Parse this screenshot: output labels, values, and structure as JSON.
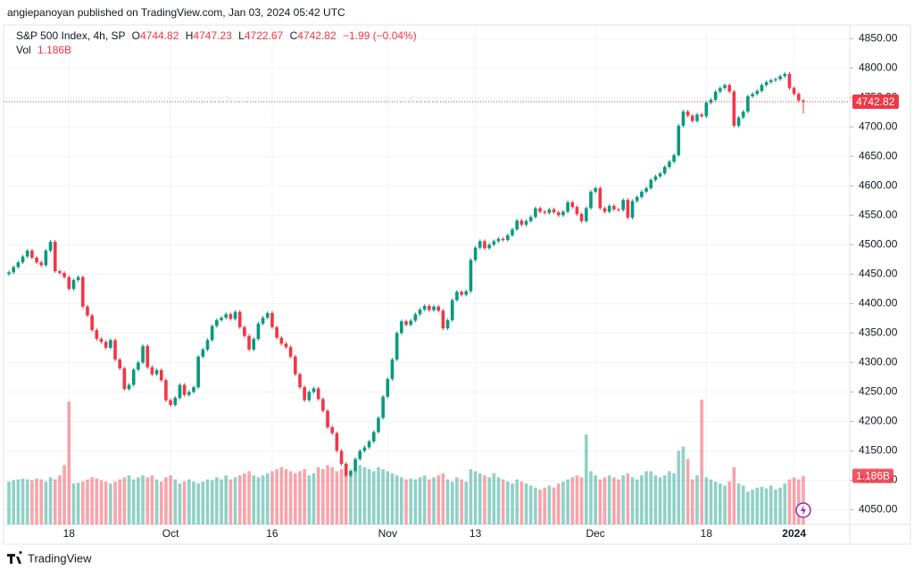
{
  "chart_data": {
    "type": "candlestick",
    "publisher": "angiepanoyan published on TradingView.com, Jan 03, 2024 05:42 UTC",
    "brand": "TradingView",
    "title": "S&P 500 Index, 4h, SP",
    "ohlc_letters": [
      "O",
      "H",
      "L",
      "C"
    ],
    "change": "−1.99 (−0.04%)",
    "up_color": "#089981",
    "down_color": "#f23645",
    "grid": true,
    "ylim": [
      4025,
      4870
    ],
    "yticks": [
      {
        "value": 4050,
        "label": "4050.00"
      },
      {
        "value": 4100,
        "label": "4100.00"
      },
      {
        "value": 4150,
        "label": "4150.00"
      },
      {
        "value": 4200,
        "label": "4200.00"
      },
      {
        "value": 4250,
        "label": "4250.00"
      },
      {
        "value": 4300,
        "label": "4300.00"
      },
      {
        "value": 4350,
        "label": "4350.00"
      },
      {
        "value": 4400,
        "label": "4400.00"
      },
      {
        "value": 4450,
        "label": "4450.00"
      },
      {
        "value": 4500,
        "label": "4500.00"
      },
      {
        "value": 4550,
        "label": "4550.00"
      },
      {
        "value": 4600,
        "label": "4600.00"
      },
      {
        "value": 4650,
        "label": "4650.00"
      },
      {
        "value": 4700,
        "label": "4700.00"
      },
      {
        "value": 4750,
        "label": "4750.00"
      },
      {
        "value": 4800,
        "label": "4800.00"
      },
      {
        "value": 4850,
        "label": "4850.00"
      }
    ],
    "categories": [
      null,
      null,
      null,
      null,
      null,
      null,
      null,
      null,
      null,
      null,
      null,
      null,
      null,
      "18",
      null,
      null,
      null,
      null,
      null,
      null,
      null,
      null,
      null,
      null,
      null,
      null,
      null,
      null,
      null,
      null,
      null,
      null,
      null,
      null,
      null,
      "Oct",
      null,
      null,
      null,
      null,
      null,
      null,
      null,
      null,
      null,
      null,
      null,
      null,
      null,
      null,
      null,
      null,
      null,
      null,
      null,
      null,
      null,
      "16",
      null,
      null,
      null,
      null,
      null,
      null,
      null,
      null,
      null,
      null,
      null,
      null,
      null,
      null,
      null,
      null,
      null,
      null,
      null,
      null,
      null,
      null,
      null,
      null,
      "Nov",
      null,
      null,
      null,
      null,
      null,
      null,
      null,
      null,
      null,
      null,
      null,
      null,
      null,
      null,
      null,
      null,
      null,
      null,
      "13",
      null,
      null,
      null,
      null,
      null,
      null,
      null,
      null,
      null,
      null,
      null,
      null,
      null,
      null,
      null,
      null,
      null,
      null,
      null,
      null,
      null,
      null,
      null,
      null,
      null,
      "Dec",
      null,
      null,
      null,
      null,
      null,
      null,
      null,
      null,
      null,
      null,
      null,
      null,
      null,
      null,
      null,
      null,
      null,
      null,
      null,
      null,
      null,
      null,
      null,
      "18",
      null,
      null,
      null,
      null,
      null,
      null,
      null,
      null,
      null,
      null,
      null,
      null,
      null,
      null,
      null,
      null,
      null,
      null,
      "2024",
      null,
      null
    ],
    "open": [
      4450,
      4453,
      4462,
      4470,
      4480,
      4490,
      4478,
      4470,
      4465,
      4490,
      4505,
      4455,
      4452,
      4445,
      4425,
      4440,
      4445,
      4395,
      4380,
      4355,
      4340,
      4335,
      4325,
      4338,
      4305,
      4290,
      4255,
      4262,
      4288,
      4300,
      4328,
      4292,
      4280,
      4287,
      4270,
      4236,
      4228,
      4240,
      4262,
      4245,
      4250,
      4258,
      4310,
      4322,
      4338,
      4362,
      4372,
      4376,
      4382,
      4374,
      4386,
      4360,
      4345,
      4322,
      4340,
      4366,
      4376,
      4384,
      4360,
      4342,
      4332,
      4326,
      4310,
      4280,
      4258,
      4236,
      4250,
      4256,
      4238,
      4218,
      4190,
      4180,
      4150,
      4128,
      4108,
      4116,
      4136,
      4150,
      4156,
      4166,
      4182,
      4206,
      4242,
      4272,
      4305,
      4350,
      4370,
      4364,
      4371,
      4382,
      4390,
      4396,
      4389,
      4395,
      4388,
      4358,
      4372,
      4406,
      4420,
      4415,
      4421,
      4474,
      4495,
      4506,
      4494,
      4500,
      4506,
      4510,
      4508,
      4516,
      4526,
      4541,
      4534,
      4540,
      4547,
      4562,
      4556,
      4554,
      4560,
      4555,
      4550,
      4556,
      4572,
      4564,
      4552,
      4540,
      4562,
      4590,
      4596,
      4562,
      4556,
      4566,
      4560,
      4559,
      4576,
      4546,
      4574,
      4581,
      4590,
      4596,
      4610,
      4616,
      4621,
      4632,
      4641,
      4652,
      4702,
      4726,
      4719,
      4710,
      4721,
      4718,
      4741,
      4746,
      4760,
      4766,
      4771,
      4760,
      4702,
      4716,
      4726,
      4752,
      4756,
      4761,
      4771,
      4776,
      4779,
      4781,
      4786,
      4790,
      4766,
      4756,
      4744.82
    ],
    "high": [
      4456,
      4465,
      4473,
      4483,
      4493,
      4493,
      4481,
      4473,
      4493,
      4508,
      4508,
      4458,
      4455,
      4448,
      4443,
      4448,
      4448,
      4398,
      4383,
      4358,
      4343,
      4338,
      4341,
      4341,
      4308,
      4293,
      4265,
      4291,
      4303,
      4331,
      4331,
      4295,
      4290,
      4290,
      4273,
      4239,
      4243,
      4265,
      4265,
      4253,
      4261,
      4313,
      4325,
      4341,
      4365,
      4375,
      4379,
      4385,
      4385,
      4389,
      4389,
      4363,
      4348,
      4343,
      4369,
      4379,
      4387,
      4387,
      4363,
      4345,
      4335,
      4329,
      4313,
      4283,
      4261,
      4253,
      4259,
      4259,
      4241,
      4221,
      4193,
      4183,
      4153,
      4131,
      4119,
      4139,
      4153,
      4159,
      4169,
      4185,
      4209,
      4245,
      4275,
      4308,
      4353,
      4373,
      4373,
      4374,
      4385,
      4393,
      4399,
      4399,
      4398,
      4398,
      4391,
      4375,
      4409,
      4423,
      4423,
      4424,
      4477,
      4498,
      4509,
      4509,
      4503,
      4509,
      4513,
      4513,
      4519,
      4529,
      4544,
      4544,
      4543,
      4550,
      4565,
      4565,
      4559,
      4563,
      4563,
      4558,
      4559,
      4575,
      4575,
      4567,
      4555,
      4565,
      4593,
      4599,
      4599,
      4565,
      4569,
      4569,
      4563,
      4579,
      4579,
      4577,
      4584,
      4593,
      4599,
      4613,
      4619,
      4624,
      4635,
      4644,
      4655,
      4705,
      4729,
      4729,
      4722,
      4724,
      4724,
      4744,
      4749,
      4763,
      4769,
      4774,
      4774,
      4763,
      4719,
      4729,
      4755,
      4759,
      4764,
      4774,
      4779,
      4782,
      4784,
      4789,
      4793,
      4793,
      4769,
      4759,
      4747.23
    ],
    "low": [
      4447,
      4450,
      4459,
      4467,
      4477,
      4475,
      4467,
      4462,
      4462,
      4487,
      4452,
      4449,
      4442,
      4422,
      4422,
      4437,
      4392,
      4377,
      4352,
      4337,
      4332,
      4322,
      4322,
      4302,
      4287,
      4252,
      4252,
      4259,
      4285,
      4297,
      4289,
      4277,
      4277,
      4267,
      4233,
      4225,
      4225,
      4237,
      4242,
      4242,
      4247,
      4255,
      4307,
      4319,
      4335,
      4359,
      4369,
      4373,
      4371,
      4371,
      4357,
      4342,
      4319,
      4319,
      4337,
      4363,
      4373,
      4357,
      4339,
      4329,
      4323,
      4307,
      4277,
      4255,
      4233,
      4233,
      4247,
      4235,
      4215,
      4187,
      4177,
      4147,
      4125,
      4105,
      4105,
      4113,
      4133,
      4147,
      4153,
      4163,
      4179,
      4203,
      4239,
      4269,
      4302,
      4347,
      4361,
      4361,
      4368,
      4379,
      4387,
      4386,
      4386,
      4385,
      4355,
      4355,
      4369,
      4403,
      4412,
      4412,
      4418,
      4471,
      4492,
      4491,
      4491,
      4497,
      4503,
      4505,
      4505,
      4513,
      4523,
      4531,
      4531,
      4537,
      4544,
      4553,
      4551,
      4551,
      4552,
      4547,
      4547,
      4553,
      4561,
      4549,
      4537,
      4537,
      4559,
      4587,
      4559,
      4553,
      4553,
      4557,
      4556,
      4556,
      4543,
      4543,
      4571,
      4578,
      4587,
      4593,
      4607,
      4613,
      4618,
      4629,
      4638,
      4649,
      4699,
      4716,
      4707,
      4707,
      4715,
      4715,
      4738,
      4743,
      4757,
      4763,
      4757,
      4699,
      4699,
      4713,
      4723,
      4749,
      4753,
      4758,
      4768,
      4773,
      4776,
      4778,
      4783,
      4763,
      4753,
      4742,
      4722.67
    ],
    "close": [
      4453,
      4462,
      4470,
      4480,
      4490,
      4478,
      4470,
      4465,
      4490,
      4505,
      4455,
      4452,
      4445,
      4425,
      4440,
      4445,
      4395,
      4380,
      4355,
      4340,
      4335,
      4325,
      4338,
      4305,
      4290,
      4255,
      4262,
      4288,
      4300,
      4328,
      4292,
      4280,
      4287,
      4270,
      4236,
      4228,
      4240,
      4262,
      4245,
      4250,
      4258,
      4310,
      4322,
      4338,
      4362,
      4372,
      4376,
      4382,
      4374,
      4386,
      4360,
      4345,
      4322,
      4340,
      4366,
      4376,
      4384,
      4360,
      4342,
      4332,
      4326,
      4310,
      4280,
      4258,
      4236,
      4250,
      4256,
      4238,
      4218,
      4190,
      4180,
      4150,
      4128,
      4108,
      4116,
      4136,
      4150,
      4156,
      4166,
      4182,
      4206,
      4242,
      4272,
      4305,
      4350,
      4370,
      4364,
      4371,
      4382,
      4390,
      4396,
      4389,
      4395,
      4388,
      4358,
      4372,
      4406,
      4420,
      4415,
      4421,
      4474,
      4495,
      4506,
      4494,
      4500,
      4506,
      4510,
      4508,
      4516,
      4526,
      4541,
      4534,
      4540,
      4547,
      4562,
      4556,
      4554,
      4560,
      4555,
      4550,
      4556,
      4572,
      4564,
      4552,
      4540,
      4562,
      4590,
      4596,
      4562,
      4556,
      4566,
      4560,
      4559,
      4576,
      4546,
      4574,
      4581,
      4590,
      4596,
      4610,
      4616,
      4621,
      4632,
      4641,
      4652,
      4702,
      4726,
      4719,
      4710,
      4721,
      4718,
      4741,
      4746,
      4760,
      4766,
      4771,
      4760,
      4702,
      4716,
      4726,
      4752,
      4756,
      4761,
      4771,
      4776,
      4779,
      4781,
      4786,
      4790,
      4766,
      4756,
      4745,
      4742.82
    ],
    "volume": {
      "name": "Vol",
      "last_label": "1.186B",
      "values": [
        1.05,
        1.08,
        1.1,
        1.12,
        1.1,
        1.08,
        1.12,
        1.1,
        1.05,
        1.15,
        1.1,
        1.2,
        1.45,
        3.0,
        1.0,
        1.02,
        1.05,
        1.1,
        1.15,
        1.12,
        1.08,
        1.05,
        1.0,
        1.05,
        1.1,
        1.15,
        1.2,
        1.1,
        1.15,
        1.2,
        1.15,
        1.2,
        1.1,
        1.05,
        1.15,
        1.2,
        1.1,
        1.0,
        1.05,
        1.1,
        1.05,
        1.0,
        1.05,
        1.1,
        1.08,
        1.15,
        1.1,
        1.2,
        1.1,
        1.15,
        1.2,
        1.25,
        1.3,
        1.2,
        1.15,
        1.2,
        1.25,
        1.3,
        1.35,
        1.4,
        1.35,
        1.3,
        1.25,
        1.3,
        1.35,
        1.2,
        1.25,
        1.4,
        1.35,
        1.45,
        1.4,
        1.3,
        1.35,
        1.4,
        1.3,
        1.35,
        1.45,
        1.4,
        1.35,
        1.3,
        1.4,
        1.35,
        1.3,
        1.25,
        1.2,
        1.15,
        1.1,
        1.12,
        1.1,
        1.15,
        1.2,
        1.1,
        1.15,
        1.2,
        1.25,
        1.1,
        1.05,
        1.15,
        1.1,
        1.05,
        1.35,
        1.3,
        1.25,
        1.2,
        1.15,
        1.25,
        1.15,
        1.1,
        1.05,
        1.0,
        1.1,
        1.05,
        1.0,
        0.95,
        0.9,
        0.85,
        0.9,
        0.95,
        0.9,
        1.0,
        1.05,
        1.1,
        1.15,
        1.2,
        1.15,
        2.2,
        1.3,
        1.2,
        1.1,
        1.15,
        1.2,
        1.15,
        1.1,
        1.2,
        1.25,
        1.15,
        1.1,
        1.2,
        1.3,
        1.3,
        1.2,
        1.15,
        1.2,
        1.3,
        1.25,
        1.8,
        1.9,
        1.6,
        1.1,
        1.2,
        3.05,
        1.15,
        1.1,
        1.05,
        1.0,
        0.95,
        1.05,
        1.4,
        1.0,
        0.95,
        0.8,
        0.85,
        0.9,
        0.92,
        0.88,
        0.95,
        0.85,
        0.9,
        1.0,
        1.1,
        1.15,
        1.1,
        1.186
      ]
    }
  }
}
